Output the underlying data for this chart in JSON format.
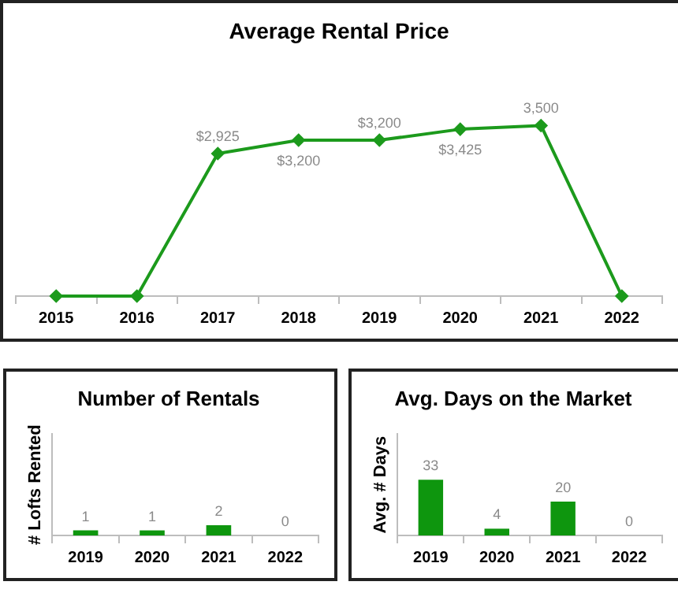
{
  "chart_data": [
    {
      "type": "line",
      "title": "Average Rental Price",
      "categories": [
        "2015",
        "2016",
        "2017",
        "2018",
        "2019",
        "2020",
        "2021",
        "2022"
      ],
      "series": [
        {
          "color": "#1c9a1c",
          "values": [
            0,
            0,
            2925,
            3200,
            3200,
            3425,
            3500,
            0
          ],
          "value_labels": [
            null,
            null,
            "$2,925",
            "$3,200",
            "$3,200",
            "$3,425",
            "3,500",
            null
          ]
        }
      ],
      "marker": "diamond",
      "grid": false,
      "legend": false
    },
    {
      "type": "bar",
      "title": "Number of Rentals",
      "ylabel": "# Lofts Rented",
      "categories": [
        "2019",
        "2020",
        "2021",
        "2022"
      ],
      "series": [
        {
          "color": "#0e960e",
          "values": [
            1,
            1,
            2,
            0
          ]
        }
      ],
      "data_labels": true,
      "grid": false,
      "legend": false
    },
    {
      "type": "bar",
      "title": "Avg. Days on the Market",
      "ylabel": "Avg. # Days",
      "categories": [
        "2019",
        "2020",
        "2021",
        "2022"
      ],
      "series": [
        {
          "color": "#0e960e",
          "values": [
            33,
            4,
            20,
            0
          ]
        }
      ],
      "data_labels": true,
      "grid": false,
      "legend": false
    }
  ]
}
